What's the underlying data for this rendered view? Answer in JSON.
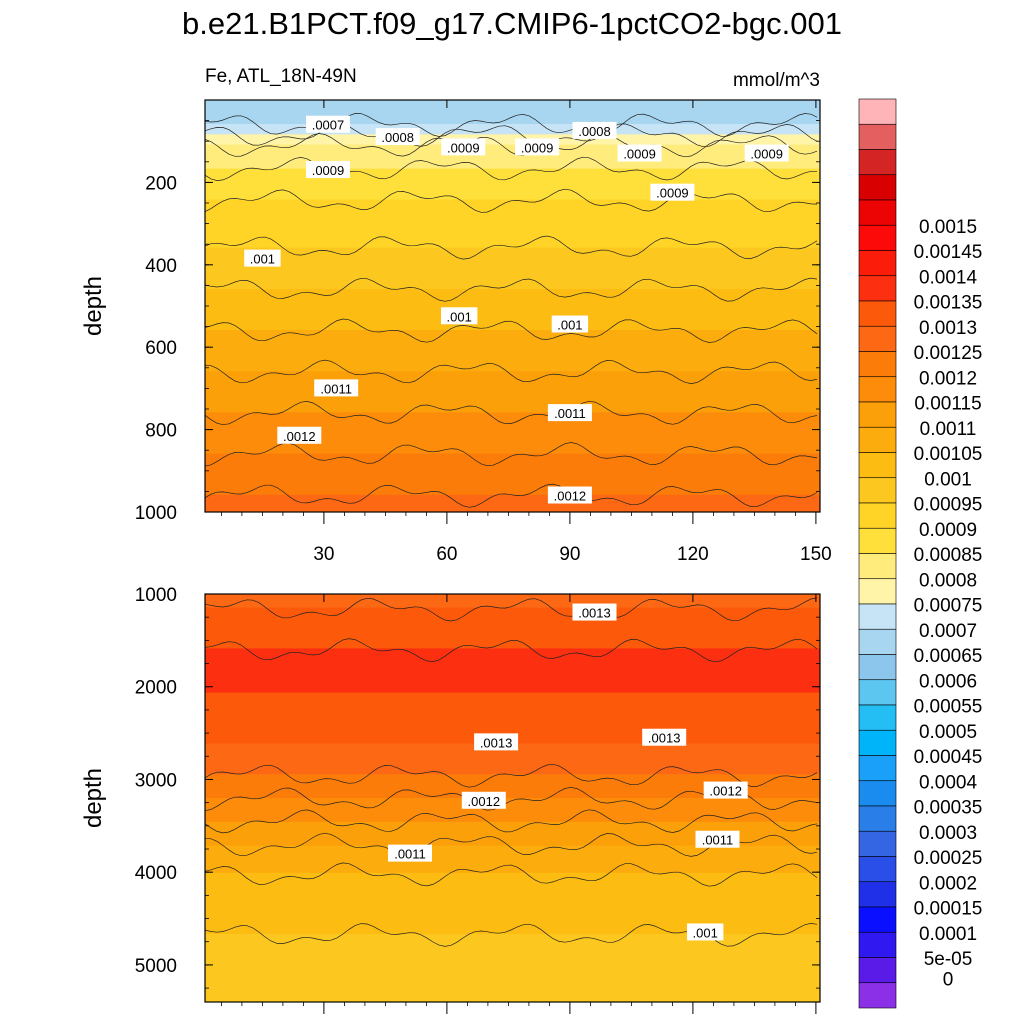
{
  "title": "b.e21.B1PCT.f09_g17.CMIP6-1pctCO2-bgc.001",
  "chart_data": [
    {
      "type": "heatmap",
      "panel": "upper",
      "left_label": "Fe, ATL_18N-49N",
      "right_label": "mmol/m^3",
      "ylabel": "depth",
      "xlabel": "",
      "xlim": [
        1,
        151
      ],
      "ylim": [
        1000,
        0
      ],
      "xticks": [
        "30",
        "60",
        "90",
        "120",
        "150"
      ],
      "yticks": [
        "200",
        "400",
        "600",
        "800",
        "1000"
      ],
      "depth_profile": [
        {
          "depth": 0,
          "value": 0.00065
        },
        {
          "depth": 60,
          "value": 0.0007
        },
        {
          "depth": 110,
          "value": 0.0008
        },
        {
          "depth": 200,
          "value": 0.00088
        },
        {
          "depth": 400,
          "value": 0.00097
        },
        {
          "depth": 600,
          "value": 0.00107
        },
        {
          "depth": 800,
          "value": 0.00117
        },
        {
          "depth": 1000,
          "value": 0.00127
        }
      ],
      "contour_labels": [
        {
          "text": ".0007",
          "x": 31,
          "depth": 60
        },
        {
          "text": ".0008",
          "x": 48,
          "depth": 90
        },
        {
          "text": ".0009",
          "x": 31,
          "depth": 170
        },
        {
          "text": ".0009",
          "x": 64,
          "depth": 115
        },
        {
          "text": ".0009",
          "x": 82,
          "depth": 115
        },
        {
          "text": ".0008",
          "x": 96,
          "depth": 75
        },
        {
          "text": ".0009",
          "x": 107,
          "depth": 130
        },
        {
          "text": ".0009",
          "x": 138,
          "depth": 130
        },
        {
          "text": ".0009",
          "x": 115,
          "depth": 225
        },
        {
          "text": ".001",
          "x": 15,
          "depth": 385
        },
        {
          "text": ".001",
          "x": 63,
          "depth": 525
        },
        {
          "text": ".001",
          "x": 90,
          "depth": 545
        },
        {
          "text": ".0011",
          "x": 33,
          "depth": 700
        },
        {
          "text": ".0011",
          "x": 90,
          "depth": 760
        },
        {
          "text": ".0012",
          "x": 24,
          "depth": 815
        },
        {
          "text": ".0012",
          "x": 90,
          "depth": 960
        }
      ]
    },
    {
      "type": "heatmap",
      "panel": "lower",
      "ylabel": "depth",
      "xlabel": "",
      "xlim": [
        1,
        151
      ],
      "ylim": [
        5400,
        1000
      ],
      "yticks": [
        "1000",
        "2000",
        "3000",
        "4000",
        "5000"
      ],
      "depth_profile": [
        {
          "depth": 1000,
          "value": 0.00128
        },
        {
          "depth": 1400,
          "value": 0.00133
        },
        {
          "depth": 1800,
          "value": 0.00137
        },
        {
          "depth": 2300,
          "value": 0.00133
        },
        {
          "depth": 2800,
          "value": 0.00128
        },
        {
          "depth": 3300,
          "value": 0.00118
        },
        {
          "depth": 3800,
          "value": 0.00108
        },
        {
          "depth": 4300,
          "value": 0.00101
        },
        {
          "depth": 5400,
          "value": 0.00098
        }
      ],
      "contour_labels": [
        {
          "text": ".0013",
          "x": 96,
          "depth": 1200
        },
        {
          "text": ".0013",
          "x": 72,
          "depth": 2600
        },
        {
          "text": ".0013",
          "x": 113,
          "depth": 2550
        },
        {
          "text": ".0012",
          "x": 69,
          "depth": 3230
        },
        {
          "text": ".0012",
          "x": 128,
          "depth": 3120
        },
        {
          "text": ".0011",
          "x": 51,
          "depth": 3800
        },
        {
          "text": ".0011",
          "x": 126,
          "depth": 3650
        },
        {
          "text": ".001",
          "x": 123,
          "depth": 4650
        }
      ]
    }
  ],
  "colorbar": {
    "colors": [
      "#8c30e8",
      "#5a1ae8",
      "#3018f0",
      "#0a10ff",
      "#2030e8",
      "#2a4ee8",
      "#3466e4",
      "#2a7ee8",
      "#1a8cf0",
      "#1aa0f8",
      "#00b4fa",
      "#24bef4",
      "#5cc6f0",
      "#8cc6ec",
      "#a8d6f0",
      "#c6e4f6",
      "#fff4a8",
      "#ffec7c",
      "#ffe03a",
      "#ffd426",
      "#fcc820",
      "#fcbc12",
      "#fcac0c",
      "#fca00a",
      "#fc8c0a",
      "#fc7c0a",
      "#fc6814",
      "#fc5a0a",
      "#fc3010",
      "#fc1c0a",
      "#fc0a0a",
      "#ec0404",
      "#d80000",
      "#d42424",
      "#e46060",
      "#ffb4b8"
    ],
    "labels": [
      "0",
      "5e-05",
      "0.0001",
      "0.00015",
      "0.0002",
      "0.00025",
      "0.0003",
      "0.00035",
      "0.0004",
      "0.00045",
      "0.0005",
      "0.00055",
      "0.0006",
      "0.00065",
      "0.0007",
      "0.00075",
      "0.0008",
      "0.00085",
      "0.0009",
      "0.00095",
      "0.001",
      "0.00105",
      "0.0011",
      "0.00115",
      "0.0012",
      "0.00125",
      "0.0013",
      "0.00135",
      "0.0014",
      "0.00145",
      "0.0015"
    ]
  }
}
